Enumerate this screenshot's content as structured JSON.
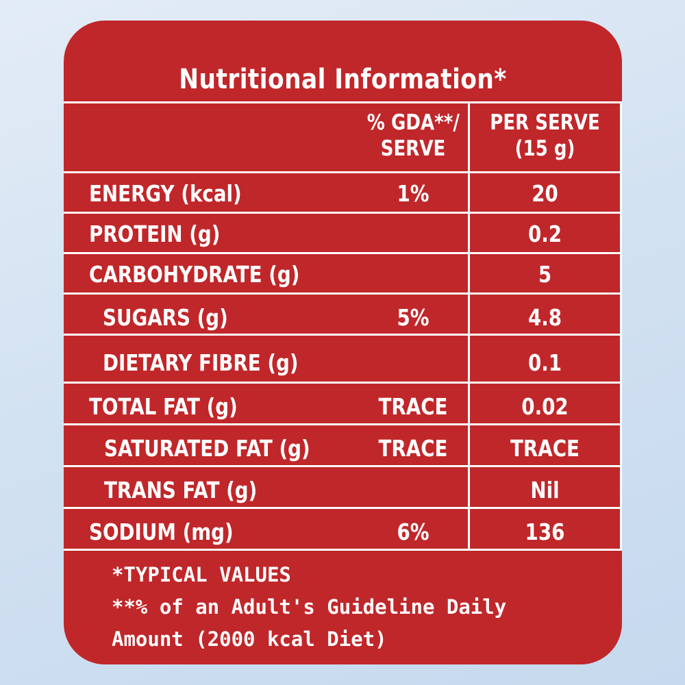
{
  "title": "Nutritional Information*",
  "columns": {
    "gda_line1": "% GDA**/",
    "gda_line2": "SERVE",
    "serve_line1": "PER SERVE",
    "serve_line2": "(15 g)"
  },
  "rows": [
    {
      "label": "ENERGY (kcal)",
      "gda": "1%",
      "per_serve": "20"
    },
    {
      "label": "PROTEIN (g)",
      "gda": "",
      "per_serve": "0.2"
    },
    {
      "label": "CARBOHYDRATE (g)",
      "gda": "",
      "per_serve": "5"
    },
    {
      "label": "SUGARS (g)",
      "gda": "5%",
      "per_serve": "4.8"
    },
    {
      "label": "DIETARY FIBRE (g)",
      "gda": "",
      "per_serve": "0.1"
    },
    {
      "label": "TOTAL FAT (g)",
      "gda": "TRACE",
      "per_serve": "0.02"
    },
    {
      "label": "SATURATED FAT (g)",
      "gda": "TRACE",
      "per_serve": "TRACE"
    },
    {
      "label": "TRANS FAT (g)",
      "gda": "",
      "per_serve": "Nil"
    },
    {
      "label": "SODIUM (mg)",
      "gda": "6%",
      "per_serve": "136"
    }
  ],
  "footnotes": {
    "line1": "*TYPICAL VALUES",
    "line2": "**% of an Adult's Guideline Daily",
    "line3": "Amount (2000 kcal Diet)"
  },
  "colors": {
    "panel": "#c0272a",
    "text": "#ffffff",
    "background": "#d3e2f2"
  }
}
